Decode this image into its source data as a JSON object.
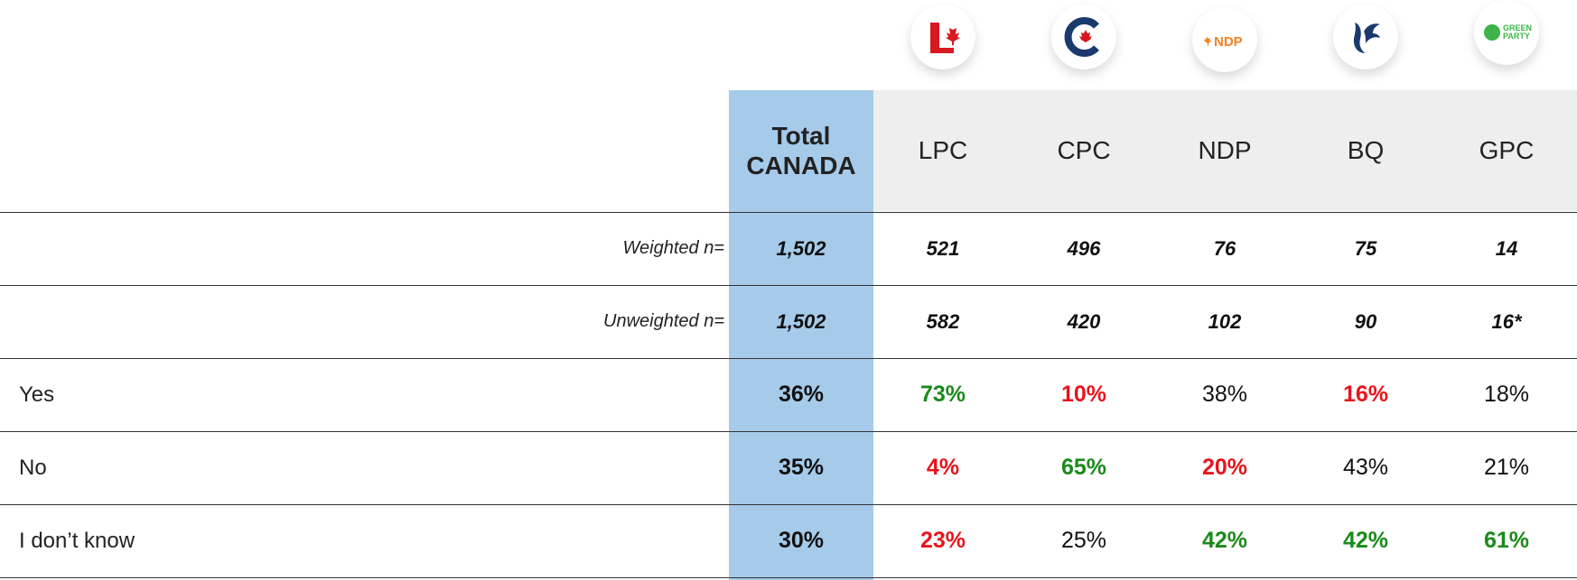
{
  "logos": {
    "ndp": "NDP",
    "green": [
      "GREEN",
      "PARTY"
    ]
  },
  "table": {
    "columns": [
      "Total CANADA",
      "LPC",
      "CPC",
      "NDP",
      "BQ",
      "GPC"
    ],
    "rows": [
      {
        "label": "Weighted n=",
        "italic": true,
        "cells": [
          "1,502",
          "521",
          "496",
          "76",
          "75",
          "14"
        ]
      },
      {
        "label": "Unweighted n=",
        "italic": true,
        "cells": [
          "1,502",
          "582",
          "420",
          "102",
          "90",
          "16*"
        ]
      },
      {
        "label": "Yes",
        "cells": [
          "36%",
          "73%",
          "10%",
          "38%",
          "16%",
          "18%"
        ],
        "colors": [
          null,
          "#1a8a1a",
          "#e8141c",
          null,
          "#e8141c",
          null
        ]
      },
      {
        "label": "No",
        "cells": [
          "35%",
          "4%",
          "65%",
          "20%",
          "43%",
          "21%"
        ],
        "colors": [
          null,
          "#e8141c",
          "#1a8a1a",
          "#e8141c",
          null,
          null
        ]
      },
      {
        "label": "I don’t know",
        "cells": [
          "30%",
          "23%",
          "25%",
          "42%",
          "42%",
          "61%"
        ],
        "colors": [
          null,
          "#e8141c",
          null,
          "#1a8a1a",
          "#1a8a1a",
          "#1a8a1a"
        ]
      }
    ]
  }
}
